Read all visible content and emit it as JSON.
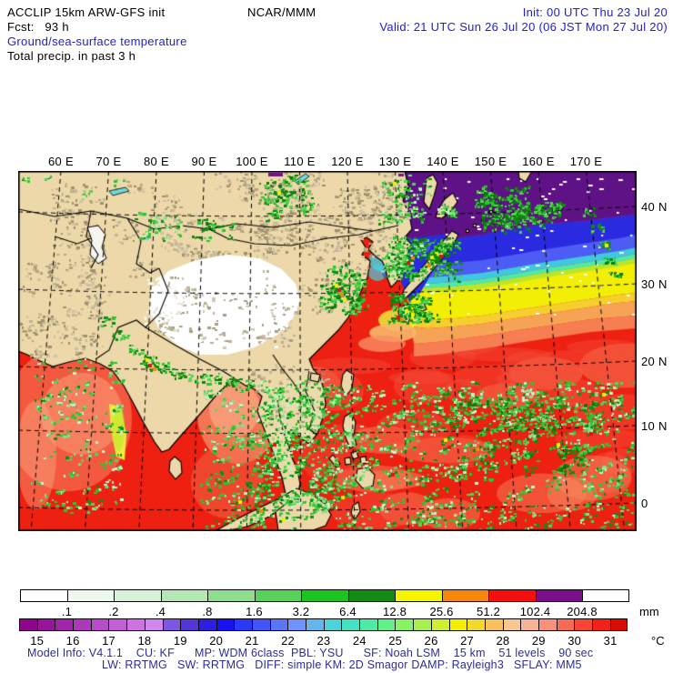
{
  "header": {
    "title": "ACCLIP 15km ARW-GFS init",
    "org": "NCAR/MMM",
    "init": "Init: 00 UTC Thu 23 Jul 20",
    "fcst": "Fcst:   93 h",
    "valid": "Valid: 21 UTC Sun 26 Jul 20 (06 JST Mon 27 Jul 20)",
    "field_temp": "Ground/sea-surface temperature",
    "field_precip": "Total precip. in past 3 h"
  },
  "axes": {
    "lon": [
      "60 E",
      "70 E",
      "80 E",
      "90 E",
      "100 E",
      "110 E",
      "120 E",
      "130 E",
      "140 E",
      "150 E",
      "160 E",
      "170 E"
    ],
    "lat": [
      "40 N",
      "30 N",
      "20 N",
      "10 N",
      "0"
    ]
  },
  "precip_scale": {
    "unit": "mm",
    "labels": [
      ".1",
      ".2",
      ".4",
      ".8",
      "1.6",
      "3.2",
      "6.4",
      "12.8",
      "25.6",
      "51.2",
      "102.4",
      "204.8"
    ],
    "colors": [
      "#ffffff",
      "#eef9ee",
      "#d8f1d8",
      "#b5e7b5",
      "#8edc8e",
      "#57d157",
      "#1ec41e",
      "#118b11",
      "#f5f500",
      "#f8860b",
      "#f50f0f",
      "#7a0f8c",
      "#ffffff"
    ]
  },
  "temp_scale": {
    "unit": "°C",
    "labels": [
      "15",
      "16",
      "17",
      "18",
      "19",
      "20",
      "21",
      "22",
      "23",
      "24",
      "25",
      "26",
      "27",
      "28",
      "29",
      "30",
      "31"
    ],
    "colors": [
      "#8c078c",
      "#97149b",
      "#a224aa",
      "#ad38b9",
      "#b84cc8",
      "#c25fd5",
      "#cc73e2",
      "#d386ef",
      "#7d57e0",
      "#5336d6",
      "#2f1ee2",
      "#1612f2",
      "#2c38f8",
      "#4355fa",
      "#5a76fa",
      "#7093fa",
      "#66b4ee",
      "#4cd2da",
      "#42e2c4",
      "#4eeaa8",
      "#62f08a",
      "#84f364",
      "#a5f04b",
      "#cfee2f",
      "#f2ee05",
      "#f3d92e",
      "#f5c25e",
      "#f7c78f",
      "#f8b295",
      "#f89178",
      "#f86a52",
      "#f84634",
      "#f2221a",
      "#d90d04"
    ]
  },
  "model_info": {
    "line1": "Model Info: V4.1.1    CU: KF      MP: WDM 6class  PBL: YSU      SF: Noah LSM    15 km    51 levels    90 sec",
    "line2": "LW: RRTMG   SW: RRTMG   DIFF: simple KM: 2D Smagor DAMP: Rayleigh3   SFLAY: MM5"
  },
  "map_colors": {
    "land": "#ecd8a8",
    "ocean_warm": "#ee2011",
    "sst_purple": "#5f1286",
    "sst_blue": "#2a2ae0",
    "sst_cyan": "#3fc8e0",
    "sst_yellow": "#f2ee05",
    "sst_orange": "#f7a355",
    "precip_green": "#2ec42e",
    "precip_dark_green": "#118b11",
    "precip_light_green": "#8edc8e",
    "precip_yellow": "#f0f000",
    "precip_orange": "#f08a00",
    "precip_red": "#e81010",
    "precip_purple": "#7a0f8c",
    "snow_white": "#ffffff",
    "mountain_gray": "#b3a37f"
  }
}
